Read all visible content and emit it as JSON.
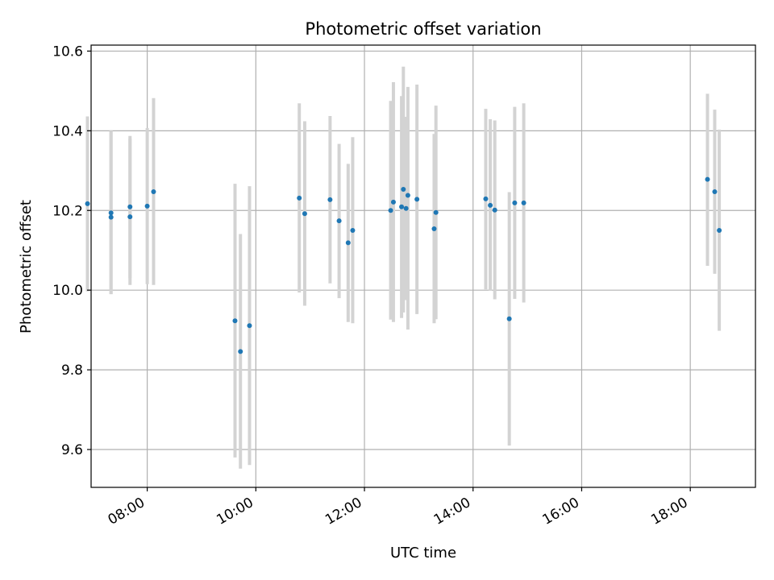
{
  "chart_data": {
    "type": "scatter",
    "title": "Photometric offset variation",
    "xlabel": "UTC time",
    "ylabel": "Photometric offset",
    "x_unit": "hours (UTC)",
    "xlim": [
      "06:58",
      "19:12"
    ],
    "ylim": [
      9.505,
      10.615
    ],
    "x_ticks": [
      "08:00",
      "10:00",
      "12:00",
      "14:00",
      "16:00",
      "18:00"
    ],
    "y_ticks": [
      "9.6",
      "9.8",
      "10.0",
      "10.2",
      "10.4",
      "10.6"
    ],
    "grid": true,
    "point_color": "#1f77b4",
    "errorbar_color": "#d3d3d3",
    "points": [
      {
        "x": "06:54",
        "y": 10.217,
        "ylo": 9.997,
        "yhi": 10.436
      },
      {
        "x": "07:20",
        "y": 10.194,
        "ylo": 9.99,
        "yhi": 10.4
      },
      {
        "x": "07:20",
        "y": 10.183,
        "ylo": 9.99,
        "yhi": 10.4
      },
      {
        "x": "07:41",
        "y": 10.209,
        "ylo": 10.03,
        "yhi": 10.387
      },
      {
        "x": "07:41",
        "y": 10.184,
        "ylo": 10.013,
        "yhi": 10.38
      },
      {
        "x": "08:00",
        "y": 10.211,
        "ylo": 10.015,
        "yhi": 10.407
      },
      {
        "x": "08:07",
        "y": 10.247,
        "ylo": 10.013,
        "yhi": 10.482
      },
      {
        "x": "09:37",
        "y": 9.923,
        "ylo": 9.58,
        "yhi": 10.267
      },
      {
        "x": "09:43",
        "y": 9.846,
        "ylo": 9.552,
        "yhi": 10.141
      },
      {
        "x": "09:53",
        "y": 9.911,
        "ylo": 9.561,
        "yhi": 10.261
      },
      {
        "x": "10:48",
        "y": 10.231,
        "ylo": 9.994,
        "yhi": 10.469
      },
      {
        "x": "10:54",
        "y": 10.192,
        "ylo": 9.961,
        "yhi": 10.424
      },
      {
        "x": "11:22",
        "y": 10.227,
        "ylo": 10.017,
        "yhi": 10.437
      },
      {
        "x": "11:32",
        "y": 10.174,
        "ylo": 9.98,
        "yhi": 10.367
      },
      {
        "x": "11:42",
        "y": 10.119,
        "ylo": 9.92,
        "yhi": 10.317
      },
      {
        "x": "11:47",
        "y": 10.15,
        "ylo": 9.917,
        "yhi": 10.384
      },
      {
        "x": "12:29",
        "y": 10.2,
        "ylo": 9.926,
        "yhi": 10.475
      },
      {
        "x": "12:32",
        "y": 10.221,
        "ylo": 9.92,
        "yhi": 10.522
      },
      {
        "x": "12:41",
        "y": 10.209,
        "ylo": 9.93,
        "yhi": 10.487
      },
      {
        "x": "12:43",
        "y": 10.253,
        "ylo": 9.944,
        "yhi": 10.561
      },
      {
        "x": "12:46",
        "y": 10.205,
        "ylo": 9.975,
        "yhi": 10.435
      },
      {
        "x": "12:48",
        "y": 10.238,
        "ylo": 9.901,
        "yhi": 10.51
      },
      {
        "x": "12:58",
        "y": 10.228,
        "ylo": 9.94,
        "yhi": 10.516
      },
      {
        "x": "13:17",
        "y": 10.154,
        "ylo": 9.917,
        "yhi": 10.392
      },
      {
        "x": "13:19",
        "y": 10.195,
        "ylo": 9.927,
        "yhi": 10.463
      },
      {
        "x": "14:14",
        "y": 10.229,
        "ylo": 10.002,
        "yhi": 10.455
      },
      {
        "x": "14:19",
        "y": 10.213,
        "ylo": 9.999,
        "yhi": 10.429
      },
      {
        "x": "14:24",
        "y": 10.201,
        "ylo": 9.977,
        "yhi": 10.426
      },
      {
        "x": "14:40",
        "y": 9.928,
        "ylo": 9.61,
        "yhi": 10.246
      },
      {
        "x": "14:46",
        "y": 10.219,
        "ylo": 9.978,
        "yhi": 10.46
      },
      {
        "x": "14:56",
        "y": 10.219,
        "ylo": 9.969,
        "yhi": 10.469
      },
      {
        "x": "18:19",
        "y": 10.278,
        "ylo": 10.061,
        "yhi": 10.493
      },
      {
        "x": "18:27",
        "y": 10.247,
        "ylo": 10.041,
        "yhi": 10.453
      },
      {
        "x": "18:32",
        "y": 10.15,
        "ylo": 9.898,
        "yhi": 10.403
      }
    ]
  }
}
